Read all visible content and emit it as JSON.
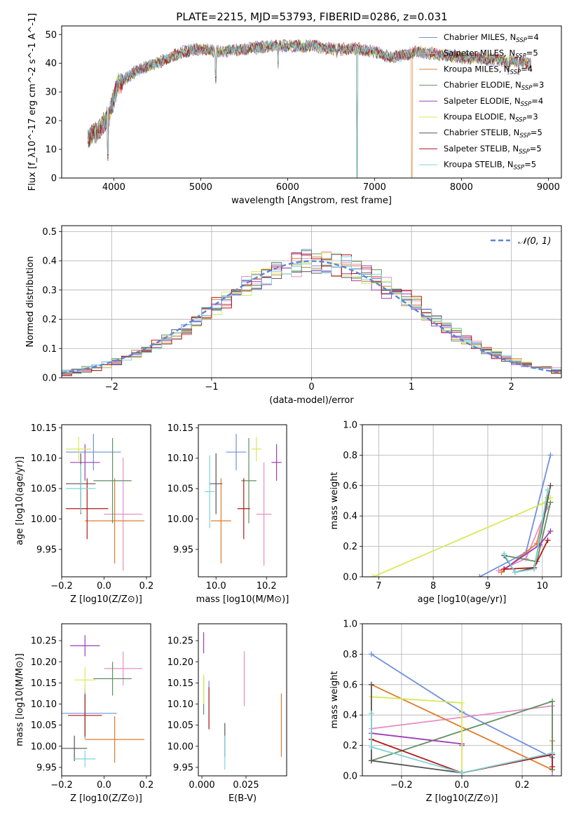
{
  "figure": {
    "title": "PLATE=2215, MJD=53793, FIBERID=0286, z=0.031"
  },
  "colors": [
    "#6f8fdc",
    "#e58fc5",
    "#e07b2c",
    "#5f8f5f",
    "#9b3fb5",
    "#d8e85a",
    "#555555",
    "#b01a1a",
    "#7fd3d8"
  ],
  "chart_data": [
    {
      "id": "spectrum",
      "type": "line",
      "xlabel": "wavelength [Angstrom, rest frame]",
      "ylabel": "Flux [f_λ10^-17 erg cm^-2 s^-1 A^-1]",
      "xlim": [
        3400,
        9150
      ],
      "ylim": [
        0,
        53
      ],
      "xticks": [
        "4000",
        "5000",
        "6000",
        "7000",
        "8000",
        "9000"
      ],
      "yticks": [
        "0",
        "10",
        "20",
        "30",
        "40",
        "50"
      ],
      "grid": false,
      "legend_position": "top-right",
      "series": [
        {
          "name": "Chabrier MILES, N",
          "sub": "SSP",
          "suffix": "=4"
        },
        {
          "name": "Salpeter MILES, N",
          "sub": "SSP",
          "suffix": "=5"
        },
        {
          "name": "Kroupa MILES, N",
          "sub": "SSP",
          "suffix": "=4"
        },
        {
          "name": "Chabrier ELODIE, N",
          "sub": "SSP",
          "suffix": "=3"
        },
        {
          "name": "Salpeter ELODIE, N",
          "sub": "SSP",
          "suffix": "=4"
        },
        {
          "name": "Kroupa ELODIE, N",
          "sub": "SSP",
          "suffix": "=3"
        },
        {
          "name": "Chabrier STELIB, N",
          "sub": "SSP",
          "suffix": "=5"
        },
        {
          "name": "Salpeter STELIB, N",
          "sub": "SSP",
          "suffix": "=5"
        },
        {
          "name": "Kroupa STELIB, N",
          "sub": "SSP",
          "suffix": "=5"
        }
      ],
      "envelope": [
        [
          3700,
          14
        ],
        [
          3800,
          16
        ],
        [
          3900,
          20
        ],
        [
          3950,
          22
        ],
        [
          4000,
          28
        ],
        [
          4050,
          33
        ],
        [
          4150,
          35
        ],
        [
          4300,
          38
        ],
        [
          4500,
          40
        ],
        [
          4800,
          44
        ],
        [
          5000,
          45
        ],
        [
          5200,
          44
        ],
        [
          5500,
          45
        ],
        [
          5800,
          46
        ],
        [
          6000,
          46
        ],
        [
          6300,
          46
        ],
        [
          6500,
          45
        ],
        [
          6800,
          45
        ],
        [
          7000,
          44
        ],
        [
          7200,
          42
        ],
        [
          7500,
          44
        ],
        [
          8000,
          42
        ],
        [
          8500,
          41
        ],
        [
          8800,
          40
        ]
      ],
      "dips": [
        [
          3930,
          6
        ],
        [
          5175,
          33
        ],
        [
          5890,
          38
        ],
        [
          6563,
          42
        ],
        [
          6800,
          0
        ],
        [
          7430,
          0
        ],
        [
          8500,
          37
        ],
        [
          8540,
          36
        ],
        [
          8660,
          36
        ]
      ]
    },
    {
      "id": "residuals",
      "type": "histogram",
      "xlabel": "(data-model)/error",
      "ylabel": "Normed distribution",
      "xlim": [
        -2.5,
        2.5
      ],
      "ylim": [
        0,
        0.52
      ],
      "xticks": [
        "−2",
        "−1",
        "0",
        "1",
        "2"
      ],
      "yticks": [
        "0.0",
        "0.1",
        "0.2",
        "0.3",
        "0.4",
        "0.5"
      ],
      "grid": true,
      "legend": "𝒩(0, 1)",
      "legend_position": "top-right",
      "bin_width": 0.1,
      "reference": {
        "mean": 0,
        "sigma": 1
      }
    },
    {
      "id": "age-vs-Z",
      "type": "scatter",
      "xlabel": "Z [log10(Z/Z⊙)]",
      "ylabel": "age [log10(age/yr)]",
      "xlim": [
        -0.2,
        0.22
      ],
      "ylim": [
        9.905,
        10.155
      ],
      "xticks": [
        "−0.2",
        "0.0",
        "0.2"
      ],
      "yticks": [
        "9.95",
        "10.00",
        "10.05",
        "10.10",
        "10.15"
      ],
      "points": [
        {
          "x": -0.05,
          "y": 10.11,
          "xerr": 0.13,
          "yerr": 0.03,
          "c": 0
        },
        {
          "x": 0.09,
          "y": 10.008,
          "xerr": 0.09,
          "yerr": 0.093,
          "c": 1
        },
        {
          "x": 0.05,
          "y": 9.997,
          "xerr": 0.14,
          "yerr": 0.07,
          "c": 2
        },
        {
          "x": 0.04,
          "y": 10.063,
          "xerr": 0.09,
          "yerr": 0.07,
          "c": 3
        },
        {
          "x": -0.09,
          "y": 10.093,
          "xerr": 0.07,
          "yerr": 0.03,
          "c": 4
        },
        {
          "x": -0.12,
          "y": 10.115,
          "xerr": 0.06,
          "yerr": 0.02,
          "c": 5
        },
        {
          "x": -0.11,
          "y": 10.058,
          "xerr": 0.07,
          "yerr": 0.05,
          "c": 6
        },
        {
          "x": -0.08,
          "y": 10.017,
          "xerr": 0.1,
          "yerr": 0.05,
          "c": 7
        },
        {
          "x": -0.11,
          "y": 10.05,
          "xerr": 0.07,
          "yerr": 0.04,
          "c": 8
        }
      ]
    },
    {
      "id": "age-vs-mass",
      "type": "scatter",
      "xlabel": "mass [log10(M/M⊙)]",
      "ylabel": "",
      "xlim": [
        9.93,
        10.28
      ],
      "ylim": [
        9.905,
        10.155
      ],
      "xticks": [
        "10.0",
        "10.2"
      ],
      "yticks": [
        "9.95",
        "10.00",
        "10.05",
        "10.10",
        "10.15"
      ],
      "points": [
        {
          "x": 10.08,
          "y": 10.11,
          "xerr": 0.04,
          "yerr": 0.03,
          "c": 0
        },
        {
          "x": 10.19,
          "y": 10.008,
          "xerr": 0.03,
          "yerr": 0.085,
          "c": 1
        },
        {
          "x": 10.02,
          "y": 9.997,
          "xerr": 0.04,
          "yerr": 0.07,
          "c": 2
        },
        {
          "x": 10.13,
          "y": 10.063,
          "xerr": 0.03,
          "yerr": 0.07,
          "c": 3
        },
        {
          "x": 10.24,
          "y": 10.093,
          "xerr": 0.02,
          "yerr": 0.03,
          "c": 4
        },
        {
          "x": 10.16,
          "y": 10.115,
          "xerr": 0.02,
          "yerr": 0.02,
          "c": 5
        },
        {
          "x": 10.0,
          "y": 10.058,
          "xerr": 0.025,
          "yerr": 0.05,
          "c": 6
        },
        {
          "x": 10.11,
          "y": 10.017,
          "xerr": 0.025,
          "yerr": 0.05,
          "c": 7
        },
        {
          "x": 9.975,
          "y": 10.045,
          "xerr": 0.02,
          "yerr": 0.06,
          "c": 8
        }
      ]
    },
    {
      "id": "weights-vs-age",
      "type": "line",
      "xlabel": "age [log10(age/yr)]",
      "ylabel": "mass weight",
      "xlim": [
        6.7,
        10.35
      ],
      "ylim": [
        0,
        1
      ],
      "xticks": [
        "7",
        "8",
        "9",
        "10"
      ],
      "yticks": [
        "0.0",
        "0.2",
        "0.4",
        "0.6",
        "0.8",
        "1.0"
      ],
      "grid": true,
      "series": [
        {
          "c": 0,
          "x": [
            8.85,
            9.7,
            10.15
          ],
          "y": [
            0.0,
            0.16,
            0.8
          ]
        },
        {
          "c": 1,
          "x": [
            9.2,
            9.7,
            10.1
          ],
          "y": [
            0.04,
            0.12,
            0.46
          ]
        },
        {
          "c": 2,
          "x": [
            9.25,
            9.9,
            10.1
          ],
          "y": [
            0.03,
            0.22,
            0.52
          ]
        },
        {
          "c": 3,
          "x": [
            9.3,
            9.9,
            10.15
          ],
          "y": [
            0.14,
            0.1,
            0.49
          ]
        },
        {
          "c": 4,
          "x": [
            9.3,
            9.95,
            10.15
          ],
          "y": [
            0.05,
            0.21,
            0.3
          ]
        },
        {
          "c": 5,
          "x": [
            6.9,
            10.0,
            10.15
          ],
          "y": [
            0.0,
            0.48,
            0.52
          ]
        },
        {
          "c": 6,
          "x": [
            9.3,
            9.5,
            9.85,
            10.15
          ],
          "y": [
            0.14,
            0.03,
            0.06,
            0.6
          ]
        },
        {
          "c": 7,
          "x": [
            9.3,
            9.85,
            10.1
          ],
          "y": [
            0.05,
            0.06,
            0.24
          ]
        },
        {
          "c": 8,
          "x": [
            9.3,
            9.5,
            9.85,
            10.1
          ],
          "y": [
            0.15,
            0.03,
            0.05,
            0.57
          ]
        }
      ]
    },
    {
      "id": "mass-vs-Z",
      "type": "scatter",
      "xlabel": "Z [log10(Z/Z⊙)]",
      "ylabel": "mass [log10(M/M⊙)]",
      "xlim": [
        -0.2,
        0.22
      ],
      "ylim": [
        9.93,
        10.29
      ],
      "xticks": [
        "−0.2",
        "0.0",
        "0.2"
      ],
      "yticks": [
        "9.95",
        "10.00",
        "10.05",
        "10.10",
        "10.15",
        "10.20",
        "10.25"
      ],
      "points": [
        {
          "x": -0.09,
          "y": 10.078,
          "xerr": 0.15,
          "yerr": 0.06,
          "c": 0
        },
        {
          "x": 0.09,
          "y": 10.184,
          "xerr": 0.09,
          "yerr": 0.04,
          "c": 1
        },
        {
          "x": 0.05,
          "y": 10.016,
          "xerr": 0.14,
          "yerr": 0.055,
          "c": 2
        },
        {
          "x": 0.04,
          "y": 10.16,
          "xerr": 0.09,
          "yerr": 0.04,
          "c": 3
        },
        {
          "x": -0.09,
          "y": 10.238,
          "xerr": 0.07,
          "yerr": 0.025,
          "c": 4
        },
        {
          "x": -0.09,
          "y": 10.157,
          "xerr": 0.05,
          "yerr": 0.03,
          "c": 5
        },
        {
          "x": -0.14,
          "y": 9.995,
          "xerr": 0.06,
          "yerr": 0.03,
          "c": 6
        },
        {
          "x": -0.09,
          "y": 10.073,
          "xerr": 0.08,
          "yerr": 0.05,
          "c": 7
        },
        {
          "x": -0.09,
          "y": 9.97,
          "xerr": 0.05,
          "yerr": 0.02,
          "c": 8
        }
      ]
    },
    {
      "id": "mass-vs-EBV",
      "type": "scatter",
      "xlabel": "E(B-V)",
      "ylabel": "",
      "xlim": [
        -0.002,
        0.048
      ],
      "ylim": [
        9.93,
        10.29
      ],
      "xticks": [
        "0.000",
        "0.025"
      ],
      "yticks": [
        "9.95",
        "10.00",
        "10.05",
        "10.10",
        "10.15",
        "10.20",
        "10.25"
      ],
      "points": [
        {
          "x": 0.004,
          "y": 10.1,
          "xerr": 0,
          "yerr": 0.055,
          "c": 0
        },
        {
          "x": 0.024,
          "y": 10.16,
          "xerr": 0,
          "yerr": 0.065,
          "c": 1
        },
        {
          "x": 0.045,
          "y": 10.05,
          "xerr": 0,
          "yerr": 0.075,
          "c": 2
        },
        {
          "x": 0.001,
          "y": 10.12,
          "xerr": 0,
          "yerr": 0.045,
          "c": 3
        },
        {
          "x": 0.001,
          "y": 10.245,
          "xerr": 0,
          "yerr": 0.025,
          "c": 4
        },
        {
          "x": 0.001,
          "y": 10.135,
          "xerr": 0,
          "yerr": 0.035,
          "c": 5
        },
        {
          "x": 0.013,
          "y": 10.015,
          "xerr": 0,
          "yerr": 0.04,
          "c": 6
        },
        {
          "x": 0.004,
          "y": 10.09,
          "xerr": 0,
          "yerr": 0.05,
          "c": 7
        },
        {
          "x": 0.013,
          "y": 9.985,
          "xerr": 0,
          "yerr": 0.04,
          "c": 8
        }
      ]
    },
    {
      "id": "weights-vs-Z",
      "type": "line",
      "xlabel": "Z [log10(Z/Z⊙)]",
      "ylabel": "mass weight",
      "xlim": [
        -0.33,
        0.33
      ],
      "ylim": [
        0,
        1
      ],
      "xticks": [
        "−0.2",
        "0.0",
        "0.2"
      ],
      "yticks": [
        "0.0",
        "0.2",
        "0.4",
        "0.6",
        "0.8",
        "1.0"
      ],
      "grid": true,
      "series": [
        {
          "c": 0,
          "x": [
            -0.3,
            0.0,
            0.3
          ],
          "y": [
            0.8,
            0.42,
            0.12
          ]
        },
        {
          "c": 1,
          "x": [
            -0.3,
            0.3,
            0.3
          ],
          "y": [
            0.31,
            0.46,
            0.0
          ]
        },
        {
          "c": 2,
          "x": [
            -0.3,
            0.3,
            0.3
          ],
          "y": [
            0.6,
            0.04,
            0.23
          ]
        },
        {
          "c": 3,
          "x": [
            -0.3,
            0.3,
            0.3
          ],
          "y": [
            0.1,
            0.49,
            0.04
          ]
        },
        {
          "c": 4,
          "x": [
            -0.3,
            0.0,
            0.0
          ],
          "y": [
            0.28,
            0.21,
            0.2
          ]
        },
        {
          "c": 5,
          "x": [
            -0.3,
            0.0,
            0.0
          ],
          "y": [
            0.52,
            0.48,
            0.0
          ]
        },
        {
          "c": 6,
          "x": [
            -0.3,
            -0.3,
            0.0,
            0.3
          ],
          "y": [
            0.6,
            0.1,
            0.02,
            0.14
          ]
        },
        {
          "c": 7,
          "x": [
            -0.3,
            0.0,
            0.3,
            0.3
          ],
          "y": [
            0.24,
            0.02,
            0.14,
            0.06
          ]
        },
        {
          "c": 8,
          "x": [
            -0.3,
            -0.3,
            0.0,
            0.3
          ],
          "y": [
            0.41,
            0.19,
            0.02,
            0.15
          ]
        }
      ]
    }
  ]
}
